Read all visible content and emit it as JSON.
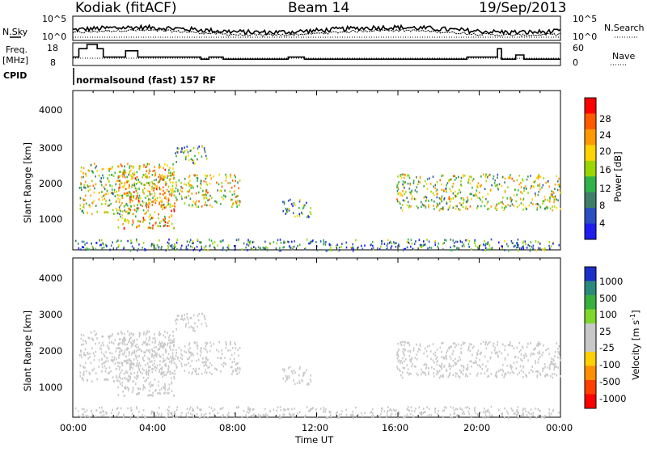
{
  "header": {
    "station": "Kodiak (fitACF)",
    "beam": "Beam 14",
    "date": "19/Sep/2013"
  },
  "noise_panel": {
    "left_label": "N.Sky",
    "right_label": "N.Search",
    "left_ticks": [
      "10^5",
      "10^0"
    ],
    "right_ticks": [
      "10^5",
      "10^0"
    ]
  },
  "freq_panel": {
    "left_label_line1": "Freq.",
    "left_label_line2": "[MHz]",
    "left_ticks": [
      "18",
      "8"
    ],
    "right_label": "Nave",
    "right_ticks": [
      "60",
      "0"
    ]
  },
  "cpid": {
    "label": "CPID",
    "program": "normalsound (fast) 157 RF"
  },
  "power_panel": {
    "ylabel": "Slant Range [km]",
    "yticks": [
      "4000",
      "3000",
      "2000",
      "1000"
    ],
    "cbar_label": "Power [dB]",
    "cbar_ticks": [
      "28",
      "24",
      "20",
      "16",
      "12",
      "8",
      "4"
    ],
    "cbar_colors": [
      "#ff0000",
      "#ff5a00",
      "#ff9a00",
      "#ffd200",
      "#9ad700",
      "#2fb44a",
      "#3f7f6a",
      "#2a4fc2",
      "#1e1ef0"
    ]
  },
  "velocity_panel": {
    "ylabel": "Slant Range [km]",
    "yticks": [
      "4000",
      "3000",
      "2000",
      "1000"
    ],
    "cbar_label": "Velocity [m s",
    "cbar_label_sup": "-1",
    "cbar_label_end": "]",
    "cbar_ticks": [
      "1000",
      "500",
      "100",
      "25",
      "-25",
      "-100",
      "-500",
      "-1000"
    ],
    "cbar_colors": [
      "#1c2fc8",
      "#2c8a7c",
      "#38b040",
      "#7dd82a",
      "#c8c8c8",
      "#c8c8c8",
      "#ffd000",
      "#ff9000",
      "#ff4000",
      "#ff0000"
    ]
  },
  "x_axis": {
    "label": "Time UT",
    "ticks": [
      "00:00",
      "04:00",
      "08:00",
      "12:00",
      "16:00",
      "20:00",
      "00:00"
    ]
  },
  "chart_data": {
    "type": "heatmap",
    "title": "Kodiak (fitACF) Beam 14 19/Sep/2013",
    "xlabel": "Time UT",
    "ylabel": "Slant Range [km]",
    "x_range_hours": [
      0,
      24
    ],
    "y_range_km": [
      180,
      4600
    ],
    "colorscale_power_db": [
      4,
      28
    ],
    "colorscale_velocity_ms": [
      -1000,
      1000
    ],
    "freq_steps": [
      {
        "t0": 0.0,
        "t1": 0.3,
        "f": 12
      },
      {
        "t0": 0.3,
        "t1": 0.7,
        "f": 16
      },
      {
        "t0": 0.7,
        "t1": 1.2,
        "f": 18
      },
      {
        "t0": 1.2,
        "t1": 1.5,
        "f": 16
      },
      {
        "t0": 1.5,
        "t1": 2.6,
        "f": 12
      },
      {
        "t0": 2.6,
        "t1": 3.2,
        "f": 15
      },
      {
        "t0": 3.2,
        "t1": 6.3,
        "f": 12
      },
      {
        "t0": 6.3,
        "t1": 6.7,
        "f": 11
      },
      {
        "t0": 6.7,
        "t1": 7.4,
        "f": 12
      },
      {
        "t0": 7.4,
        "t1": 10.6,
        "f": 11
      },
      {
        "t0": 10.6,
        "t1": 11.4,
        "f": 12
      },
      {
        "t0": 11.4,
        "t1": 19.4,
        "f": 11
      },
      {
        "t0": 19.4,
        "t1": 20.9,
        "f": 12
      },
      {
        "t0": 20.9,
        "t1": 21.1,
        "f": 16
      },
      {
        "t0": 21.1,
        "t1": 21.8,
        "f": 11
      },
      {
        "t0": 21.8,
        "t1": 22.2,
        "f": 13
      },
      {
        "t0": 22.2,
        "t1": 24.0,
        "f": 11
      }
    ],
    "echo_regions": [
      {
        "t0": 0.3,
        "t1": 3.0,
        "r0": 1200,
        "r1": 2600,
        "power": 16,
        "velocity": -20
      },
      {
        "t0": 2.2,
        "t1": 5.0,
        "r0": 800,
        "r1": 2600,
        "power": 20,
        "velocity": -25
      },
      {
        "t0": 3.0,
        "t1": 8.2,
        "r0": 1400,
        "r1": 2300,
        "power": 18,
        "velocity": -30
      },
      {
        "t0": 5.0,
        "t1": 6.6,
        "r0": 2600,
        "r1": 3100,
        "power": 12,
        "velocity": 20
      },
      {
        "t0": 10.3,
        "t1": 11.7,
        "r0": 1100,
        "r1": 1600,
        "power": 12,
        "velocity": -80
      },
      {
        "t0": 15.9,
        "t1": 24.0,
        "r0": 1300,
        "r1": 2300,
        "power": 16,
        "velocity": -40
      },
      {
        "t0": 0.0,
        "t1": 24.0,
        "r0": 180,
        "r1": 500,
        "power": 10,
        "velocity": 10
      }
    ]
  }
}
